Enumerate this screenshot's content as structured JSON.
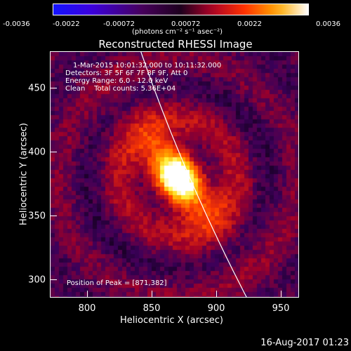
{
  "colorbar": {
    "ticks": [
      "-0.0036",
      "-0.0022",
      "-0.00072",
      "0.00072",
      "0.0022",
      "0.0036"
    ],
    "units": "(photons cm⁻² s⁻¹ asec⁻²)"
  },
  "title": "Reconstructed RHESSI Image",
  "annotations": {
    "time": "1-Mar-2015 10:01:32.000 to 10:11:32.000",
    "detectors": "Detectors: 3F 5F 6F 7F 8F 9F, Att 0",
    "energy": "Energy Range: 6.0 - 12.0 keV",
    "clean": "Clean    Total counts: 5.36E+04",
    "peak": "Position of Peak = [871,382]"
  },
  "axes": {
    "xlabel": "Heliocentric X (arcsec)",
    "ylabel": "Heliocentric Y (arcsec)",
    "xticks": [
      "800",
      "850",
      "900",
      "950"
    ],
    "yticks": [
      "450",
      "400",
      "350",
      "300"
    ]
  },
  "timestamp": "16-Aug-2017 01:23",
  "chart_data": {
    "type": "heatmap",
    "title": "Reconstructed RHESSI Image",
    "xlabel": "Heliocentric X (arcsec)",
    "ylabel": "Heliocentric Y (arcsec)",
    "xlim": [
      772,
      966
    ],
    "ylim": [
      288,
      480
    ],
    "zlim": [
      -0.0036,
      0.0036
    ],
    "colormap": "hot",
    "peak": [
      871,
      382
    ]
  }
}
